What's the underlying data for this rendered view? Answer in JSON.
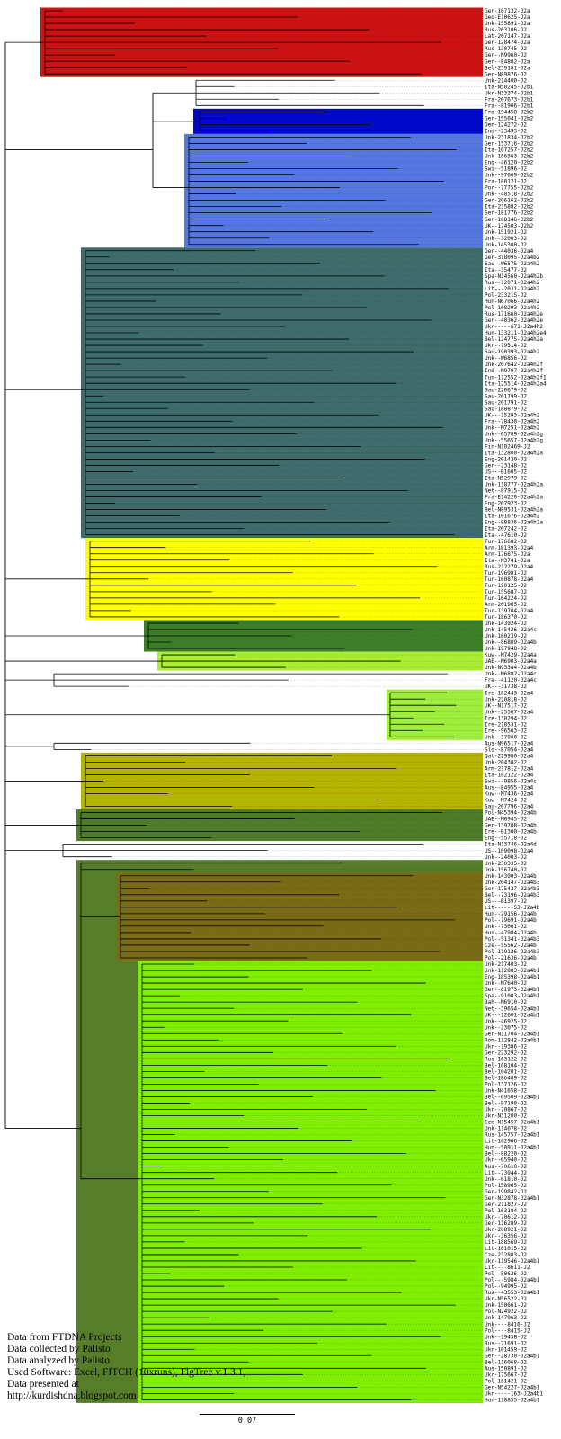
{
  "figure": {
    "type": "phylogenetic-tree",
    "scale_bar": "0.07",
    "footer_lines": [
      "Data from FTDNA Projects",
      "Data collected by Palisto",
      "Data analyzed by Palisto",
      "Used Software: Excel, FITCH (10xruns), FigTree v.1.3.1,",
      "Data presented at",
      "http://kurdishdna.blogspot.com"
    ]
  },
  "clades": [
    {
      "id": "red",
      "color": "#cc1212",
      "start": 0,
      "end": 10
    },
    {
      "id": "j2b1",
      "color": null,
      "start": 11,
      "end": 15
    },
    {
      "id": "darkblue",
      "color": "#0008cc",
      "start": 16,
      "end": 19
    },
    {
      "id": "lightblue",
      "color": "#5577e0",
      "start": 20,
      "end": 37
    },
    {
      "id": "teal",
      "color": "#3e6b6b",
      "start": 38,
      "end": 83
    },
    {
      "id": "yellow",
      "color": "#ffff00",
      "start": 84,
      "end": 96
    },
    {
      "id": "darkgreen1",
      "color": "#3c7d28",
      "start": 97,
      "end": 101
    },
    {
      "id": "greenyellow1",
      "color": "#aaee33",
      "start": 102,
      "end": 104
    },
    {
      "id": "whiteA",
      "color": null,
      "start": 105,
      "end": 107
    },
    {
      "id": "greenyellow2",
      "color": "#a0ee3c",
      "start": 108,
      "end": 115
    },
    {
      "id": "whiteB",
      "color": null,
      "start": 116,
      "end": 117
    },
    {
      "id": "darkyellow",
      "color": "#b5b200",
      "start": 118,
      "end": 126
    },
    {
      "id": "darkgreen2",
      "color": "#4f7c28",
      "start": 127,
      "end": 131
    },
    {
      "id": "whiteC",
      "color": null,
      "start": 132,
      "end": 134
    },
    {
      "id": "darkgreen3",
      "color": "#567d2a",
      "start": 135,
      "end": 220
    },
    {
      "id": "brown",
      "color": "#7a6c16",
      "start": 137,
      "end": 150
    },
    {
      "id": "chartreuse",
      "color": "#80ee00",
      "start": 151,
      "end": 220
    }
  ],
  "leaves": [
    "Ger-107132-J2a",
    "Geo-E10625-J2a",
    "Unk-155891-J2a",
    "Rus-203106-J2",
    "Lat-207147-J2a",
    "Ger-128474-J2a",
    "Rus-130745-J2",
    "Ger--N9960-J2",
    "Ger--E4882-J2a",
    "Bel-239181-J2a",
    "Ger-N89876-J2",
    "Unk-214400-J2",
    "Ita-N50245-J2b1",
    "Ukr-N33374-J2b1",
    "Fra-207673-J2b1",
    "Fra--81906-J2b1",
    "Fra-194458-J2b2",
    "Ger-155041-J2b2",
    "Den-124272-J2",
    "Ind--23493-J2",
    "Unk-231834-J2b2",
    "Ger-153716-J2b2",
    "Ita-107257-J2b2",
    "Unk-166363-J2b2",
    "Eng--46120-J2b2",
    "Swi--51896-J2",
    "Unk--97609-J2b2",
    "Fra-180121-J2",
    "Por--77755-J2b2",
    "Unk--48518-J2b2",
    "Ger-206162-J2b2",
    "Ita-235882-J2b2",
    "Ser-181776-J2b2",
    "Ger-168146-J2b2",
    "UK--174503-J2b2",
    "Unk-151921-J2",
    "Unk--32003-J2",
    "Unk-145300-J2",
    "Ger--44036-J2a4",
    "Ger-318095-J2a4b2",
    "Sau--W6575-J2a4h2",
    "Ita--35477-J2",
    "Spa-N14560-J2a4h2b",
    "Rus--12071-J2a4h2",
    "Lit---2031-J2a4h2",
    "Pol-233215-J2",
    "Hun-N67066-J2a4h2",
    "Pol-108293-J2a4h2",
    "Rus-171660-J2a4h2e",
    "Ger--40362-J2a4h2e",
    "Ukr-----671-J2a4h2",
    "Hun-133211-J2a4h2e4",
    "Bel-124775-J2a4h2a",
    "Ukr--19514-J2",
    "Sau-190393-J2a4h2",
    "Unk--W6856-J2",
    "Unk-207642-J2a4h2f",
    "Ind--N9797-J2a4h2f",
    "Tun-112552-J2a4h2f1",
    "Ita-125514-J2a4h2a4",
    "Sau-220679-J2",
    "Sau-201799-J2",
    "Sau-201791-J2",
    "Sau-188879-J2",
    "UK---15293-J2a4h2",
    "Fra--78430-J2a4h2",
    "Unk--M7251-J2a4h2",
    "Unk--65789-J2a4h2g",
    "Unk--55657-J2a4h2g",
    "Fin-N102469-J2",
    "Ita-132800-J2a4h2a",
    "Eng-201420-J2",
    "Ger--23148-J2",
    "US---B1605-J2",
    "Ita-N52979-J2",
    "Unk-118777-J2a4h2a",
    "Net--87915-J2",
    "Fra-E14220-J2a4h2a",
    "Eng-207923-J2",
    "Bel-N89531-J2a4h2a",
    "Ita-101676-J2a4h2",
    "Eng--88836-J2a4h2a",
    "Ita-207242-J2",
    "Ita--47610-J2",
    "Tur-176682-J2",
    "Arm-181393-J2a4",
    "Arm-176675-J2a",
    "Ita--N3741-J2a",
    "Rus-212279-J2a4",
    "Tur-196981-J2",
    "Tur-160878-J2a4",
    "Tur-190125-J2",
    "Tur-155687-J2",
    "Tur-164224-J2",
    "Arm-201965-J2",
    "Tur-139704-J2a4",
    "Tur-186370-J2",
    "Unk-143924-J2",
    "Unk-145426-J2a4c",
    "Unk-160239-J2",
    "Unk--86809-J2a4b",
    "Unk-197948-J2",
    "Kuw--M7429-J2a4a",
    "UAE--M6903-J2a4a",
    "Unk-N93384-J2a4b",
    "Unk--M6882-J2a4c",
    "Fra--41120-J2a4c",
    "UK---31738-J2",
    "Ire-182443-J2a4",
    "Unk-210818-J2",
    "UK--N17517-J2",
    "Unk--25567-J2a4",
    "Ire-130294-J2",
    "Ire-218531-J2",
    "Ire--96563-J2",
    "Unk--37060-J2",
    "Aus-N96517-J2a4",
    "Slo--E7054-J2a4",
    "Qat-229980-J2a4",
    "Unk-204382-J2",
    "Arm-217812-J2a4",
    "Ita-182122-J2a4",
    "Swi---9856-J2a4c",
    "Aus--E4955-J2a4",
    "Kuw--M7436-J2a4",
    "Kuw--M7424-J2",
    "Sau-207796-J2a4",
    "Pol-N45394-J2a4b",
    "UAE--M6945-J2",
    "Ger-139708-J2a4b",
    "Ire--B1300-J2a4b",
    "Eng--55718-J2",
    "Ita-N13746-J2a4d",
    "US--109098-J2a4",
    "Unk--24003-J2",
    "Unk-230335-J2",
    "Unk-156740-J2",
    "Unk-143903-J2a4b",
    "Unk-204147-J2a4b3",
    "Ger-175437-J2a4b3",
    "Bel--73196-J2a4b3",
    "US---B1397-J2",
    "Lit------53-J2a4b",
    "Hun--29156-J2a4b",
    "Pol--19691-J2a4b",
    "Unk--73061-J2",
    "Hun--47984-J2a4b",
    "Pol--51341-J2a4b3",
    "Cze--55562-J2a4b",
    "Pol-119126-J2a4b3",
    "Pol--21636-J2a4b",
    "Unk-217403-J2",
    "Unk-112883-J2a4b1",
    "Eng-185398-J2a4b1",
    "Unk--M7640-J2",
    "Ger--81973-J2a4b1",
    "Spa--91003-J2a4b1",
    "Bah--M6910-J2",
    "Net--39654-J2a4b1",
    "UK---12601-J2a4b1",
    "Unk--46925-J2",
    "Unk--23075-J2",
    "Ger-N11704-J2a4b1",
    "Rom-112842-J2a4b1",
    "Ukr--19386-J2",
    "Ger-223292-J2",
    "Rus-163122-J2",
    "Bel-168104-J2",
    "Bel-104201-J2",
    "Bel-186489-J2",
    "Pol-137126-J2",
    "Unk-N41658-J2",
    "Bel--69509-J2a4b1",
    "Bel--97190-J2",
    "Ukr--70867-J2",
    "Ukr-N31200-J2",
    "Cze-N15457-J2a4b1",
    "Unk-114078-J2",
    "Rus-145757-J2a4b1",
    "Lit-162966-J2",
    "Hun--50911-J2a4b1",
    "Bel--88220-J2",
    "Ukr--65940-J2",
    "Aus--70610-J2",
    "Lit--73944-J2",
    "Unk--61810-J2",
    "Pol-158965-J2",
    "Ger-199842-J2",
    "Ger-N32878-J2a4b1",
    "Ger-211827-J2",
    "Pol-163184-J2",
    "Ukr--70612-J2",
    "Ger-116289-J2",
    "Ukr-208921-J2",
    "Ukr--36356-J2",
    "Lit-188569-J2",
    "Lit-101015-J2",
    "Cze-232883-J2",
    "Ukr-119546-J2a4b1",
    "Lit----8611-J2",
    "Pol--50626-J2",
    "Pol---5984-J2a4b1",
    "Pol--94995-J2",
    "Rus--43553-J2a4b1",
    "Ukr-N56522-J2",
    "Unk-150661-J2",
    "Pol-N24922-J2",
    "Unk-147963-J2",
    "Unk----8416-J2",
    "Pol----8415-J2",
    "Unk--19438-J2",
    "Rus--71691-J2",
    "Ukr-101459-J2",
    "Ger--28730-J2a4b1",
    "Bel-116068-J2",
    "Aus-150891-J2",
    "Ukr-175667-J2",
    "Pol-161421-J2",
    "Ger-N54227-J2a4b1",
    "Ukr-----163-J2a4b1",
    "Hun-118855-J2a4b1"
  ]
}
